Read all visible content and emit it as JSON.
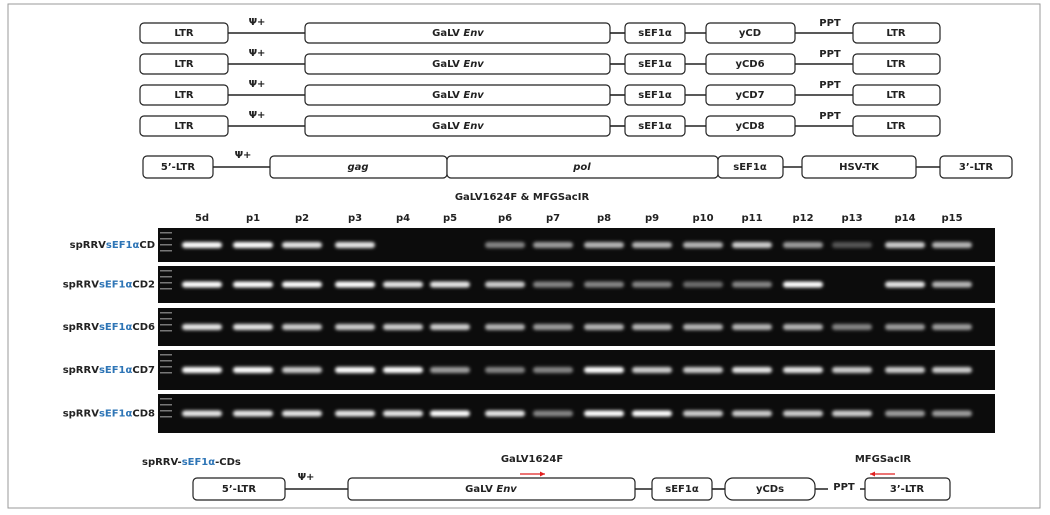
{
  "constructs": [
    {
      "ltr5": "LTR",
      "psi": "Ψ+",
      "env_a": "GaLV",
      "env_b": "Env",
      "promoter": "sEF1α",
      "gene": "yCD",
      "ppt": "PPT",
      "ltr3": "LTR"
    },
    {
      "ltr5": "LTR",
      "psi": "Ψ+",
      "env_a": "GaLV",
      "env_b": "Env",
      "promoter": "sEF1α",
      "gene": "yCD6",
      "ppt": "PPT",
      "ltr3": "LTR"
    },
    {
      "ltr5": "LTR",
      "psi": "Ψ+",
      "env_a": "GaLV",
      "env_b": "Env",
      "promoter": "sEF1α",
      "gene": "yCD7",
      "ppt": "PPT",
      "ltr3": "LTR"
    },
    {
      "ltr5": "LTR",
      "psi": "Ψ+",
      "env_a": "GaLV",
      "env_b": "Env",
      "promoter": "sEF1α",
      "gene": "yCD8",
      "ppt": "PPT",
      "ltr3": "LTR"
    }
  ],
  "vector": {
    "ltr5": "5’-LTR",
    "psi": "Ψ+",
    "gag": "gag",
    "pol": "pol",
    "promoter": "sEF1α",
    "gene": "HSV-TK",
    "ltr3": "3’-LTR"
  },
  "gel": {
    "title": "GaLV1624F & MFGSacIR",
    "lanes": [
      "5d",
      "p1",
      "p2",
      "p3",
      "p4",
      "p5",
      "p6",
      "p7",
      "p8",
      "p9",
      "p10",
      "p11",
      "p12",
      "p13",
      "p14",
      "p15"
    ],
    "rows": [
      {
        "prefix": "spRRV",
        "promoter": "sEF1α",
        "suffix": "CD"
      },
      {
        "prefix": "spRRV",
        "promoter": "sEF1α",
        "suffix": "CD2"
      },
      {
        "prefix": "spRRV",
        "promoter": "sEF1α",
        "suffix": "CD6"
      },
      {
        "prefix": "spRRV",
        "promoter": "sEF1α",
        "suffix": "CD7"
      },
      {
        "prefix": "spRRV",
        "promoter": "sEF1α",
        "suffix": "CD8"
      }
    ]
  },
  "map": {
    "title_a": "spRRV-",
    "title_b": "sEF1α",
    "title_c": "-CDs",
    "forward_primer": "GaLV1624F",
    "reverse_primer": "MFGSacIR",
    "ltr5": "5’-LTR",
    "psi": "Ψ+",
    "env_a": "GaLV",
    "env_b": "Env",
    "promoter": "sEF1α",
    "gene": "yCDs",
    "ppt": "PPT",
    "ltr3": "3’-LTR"
  }
}
